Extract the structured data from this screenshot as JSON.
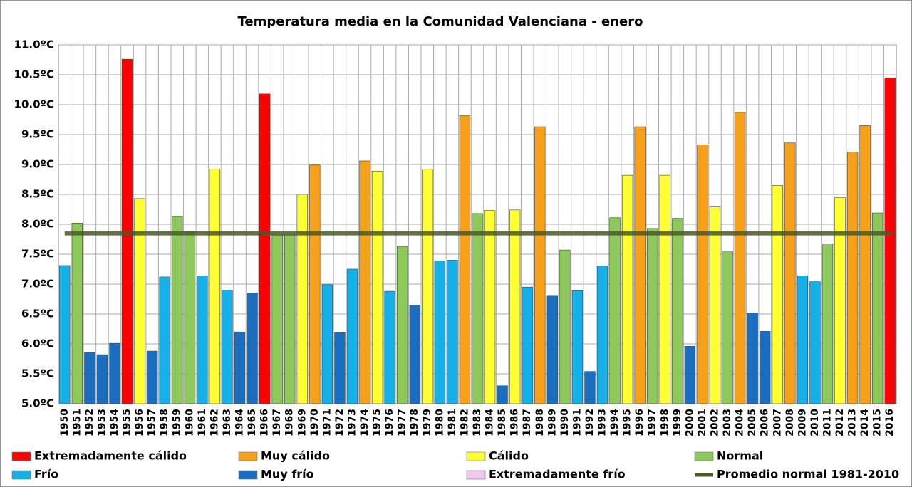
{
  "chart_data": {
    "type": "bar",
    "title": "Temperatura media en la Comunidad Valenciana - enero",
    "categories": [
      "1950",
      "1951",
      "1952",
      "1953",
      "1954",
      "1955",
      "1956",
      "1957",
      "1958",
      "1959",
      "1960",
      "1961",
      "1962",
      "1963",
      "1964",
      "1965",
      "1966",
      "1967",
      "1968",
      "1969",
      "1970",
      "1971",
      "1972",
      "1973",
      "1974",
      "1975",
      "1976",
      "1977",
      "1978",
      "1979",
      "1980",
      "1981",
      "1982",
      "1983",
      "1984",
      "1985",
      "1986",
      "1987",
      "1988",
      "1989",
      "1990",
      "1991",
      "1992",
      "1993",
      "1994",
      "1995",
      "1996",
      "1997",
      "1998",
      "1999",
      "2000",
      "2001",
      "2002",
      "2003",
      "2004",
      "2005",
      "2006",
      "2007",
      "2008",
      "2009",
      "2010",
      "2011",
      "2012",
      "2013",
      "2014",
      "2015",
      "2016"
    ],
    "series": [
      {
        "name": "Extremadamente cálido",
        "color": "#ff0000",
        "values": [
          null,
          null,
          null,
          null,
          null,
          10.76,
          null,
          null,
          null,
          null,
          null,
          null,
          null,
          null,
          null,
          null,
          10.18,
          null,
          null,
          null,
          null,
          null,
          null,
          null,
          null,
          null,
          null,
          null,
          null,
          null,
          null,
          null,
          null,
          null,
          null,
          null,
          null,
          null,
          null,
          null,
          null,
          null,
          null,
          null,
          null,
          null,
          null,
          null,
          null,
          null,
          null,
          null,
          null,
          null,
          null,
          null,
          null,
          null,
          null,
          null,
          null,
          null,
          null,
          null,
          null,
          null,
          10.45
        ]
      },
      {
        "name": "Muy cálido",
        "color": "#f7a11a",
        "values": [
          null,
          null,
          null,
          null,
          null,
          null,
          null,
          null,
          null,
          null,
          null,
          null,
          null,
          null,
          null,
          null,
          null,
          null,
          null,
          null,
          8.99,
          null,
          null,
          null,
          9.06,
          null,
          null,
          null,
          null,
          null,
          null,
          null,
          9.82,
          null,
          null,
          null,
          null,
          null,
          9.63,
          null,
          null,
          null,
          null,
          null,
          null,
          null,
          9.63,
          null,
          null,
          null,
          null,
          9.33,
          null,
          null,
          9.87,
          null,
          null,
          null,
          9.36,
          null,
          null,
          null,
          null,
          9.21,
          9.65,
          null,
          null
        ]
      },
      {
        "name": "Cálido",
        "color": "#ffff33",
        "values": [
          null,
          null,
          null,
          null,
          null,
          null,
          8.43,
          null,
          null,
          null,
          null,
          null,
          8.92,
          null,
          null,
          null,
          null,
          null,
          null,
          8.5,
          null,
          null,
          null,
          null,
          null,
          8.89,
          null,
          null,
          null,
          8.92,
          null,
          null,
          null,
          null,
          8.23,
          null,
          8.24,
          null,
          null,
          null,
          null,
          null,
          null,
          null,
          null,
          8.82,
          null,
          null,
          8.82,
          null,
          null,
          null,
          8.29,
          null,
          null,
          null,
          null,
          8.65,
          null,
          null,
          null,
          null,
          8.45,
          null,
          null,
          null,
          null
        ]
      },
      {
        "name": "Normal",
        "color": "#8dc85a",
        "values": [
          null,
          8.02,
          null,
          null,
          null,
          null,
          null,
          null,
          null,
          8.13,
          7.88,
          null,
          null,
          null,
          null,
          null,
          null,
          7.82,
          7.82,
          null,
          null,
          null,
          null,
          null,
          null,
          null,
          null,
          7.63,
          null,
          null,
          null,
          null,
          null,
          8.18,
          null,
          null,
          null,
          null,
          null,
          null,
          7.57,
          null,
          null,
          null,
          8.11,
          null,
          null,
          7.93,
          null,
          8.1,
          null,
          null,
          null,
          7.55,
          null,
          null,
          null,
          null,
          null,
          null,
          null,
          7.67,
          null,
          null,
          null,
          8.19,
          null
        ]
      },
      {
        "name": "Frío",
        "color": "#16b0e8",
        "values": [
          7.31,
          null,
          null,
          null,
          null,
          null,
          null,
          null,
          7.12,
          null,
          null,
          7.14,
          null,
          6.9,
          null,
          null,
          null,
          null,
          null,
          null,
          null,
          6.99,
          null,
          7.25,
          null,
          null,
          6.88,
          null,
          null,
          null,
          7.39,
          7.4,
          null,
          null,
          null,
          null,
          null,
          6.95,
          null,
          null,
          null,
          6.89,
          null,
          7.3,
          null,
          null,
          null,
          null,
          null,
          null,
          null,
          null,
          null,
          null,
          null,
          null,
          null,
          null,
          null,
          7.14,
          7.04,
          null,
          null,
          null,
          null,
          null,
          null
        ]
      },
      {
        "name": "Muy frío",
        "color": "#1a6ec0",
        "values": [
          null,
          null,
          5.86,
          5.82,
          6.01,
          null,
          null,
          5.88,
          null,
          null,
          null,
          null,
          null,
          null,
          6.2,
          6.85,
          null,
          null,
          null,
          null,
          null,
          null,
          6.19,
          null,
          null,
          null,
          null,
          null,
          6.65,
          null,
          null,
          null,
          null,
          null,
          null,
          5.3,
          null,
          null,
          null,
          6.8,
          null,
          null,
          5.54,
          null,
          null,
          null,
          null,
          null,
          null,
          null,
          5.96,
          null,
          null,
          null,
          null,
          6.52,
          6.21,
          null,
          null,
          null,
          null,
          null,
          null,
          null,
          null,
          null,
          null
        ]
      },
      {
        "name": "Extremadamente frío",
        "color": "#f4c6f2",
        "values": [
          null,
          null,
          null,
          null,
          null,
          null,
          null,
          null,
          null,
          null,
          null,
          null,
          null,
          null,
          null,
          null,
          null,
          null,
          null,
          null,
          null,
          null,
          null,
          null,
          null,
          null,
          null,
          null,
          null,
          null,
          null,
          null,
          null,
          null,
          null,
          null,
          null,
          null,
          null,
          null,
          null,
          null,
          null,
          null,
          null,
          null,
          null,
          null,
          null,
          null,
          null,
          null,
          null,
          null,
          null,
          null,
          null,
          null,
          null,
          null,
          null,
          null,
          null,
          null,
          null,
          null,
          null
        ]
      }
    ],
    "reference_line": {
      "name": "Promedio normal 1981-2010",
      "value": 7.85,
      "color": "#4b5a28"
    },
    "ylim": [
      5.0,
      11.0
    ],
    "yticks": [
      {
        "value": 5.0,
        "label": "5.0ºC"
      },
      {
        "value": 5.5,
        "label": "5.5ºC"
      },
      {
        "value": 6.0,
        "label": "6.0ºC"
      },
      {
        "value": 6.5,
        "label": "6.5ºC"
      },
      {
        "value": 7.0,
        "label": "7.0ºC"
      },
      {
        "value": 7.5,
        "label": "7.5ºC"
      },
      {
        "value": 8.0,
        "label": "8.0ºC"
      },
      {
        "value": 8.5,
        "label": "8.5ºC"
      },
      {
        "value": 9.0,
        "label": "9.0ºC"
      },
      {
        "value": 9.5,
        "label": "9.5ºC"
      },
      {
        "value": 10.0,
        "label": "10.0ºC"
      },
      {
        "value": 10.5,
        "label": "10.5ºC"
      },
      {
        "value": 11.0,
        "label": "11.0ºC"
      }
    ],
    "grid": true
  }
}
